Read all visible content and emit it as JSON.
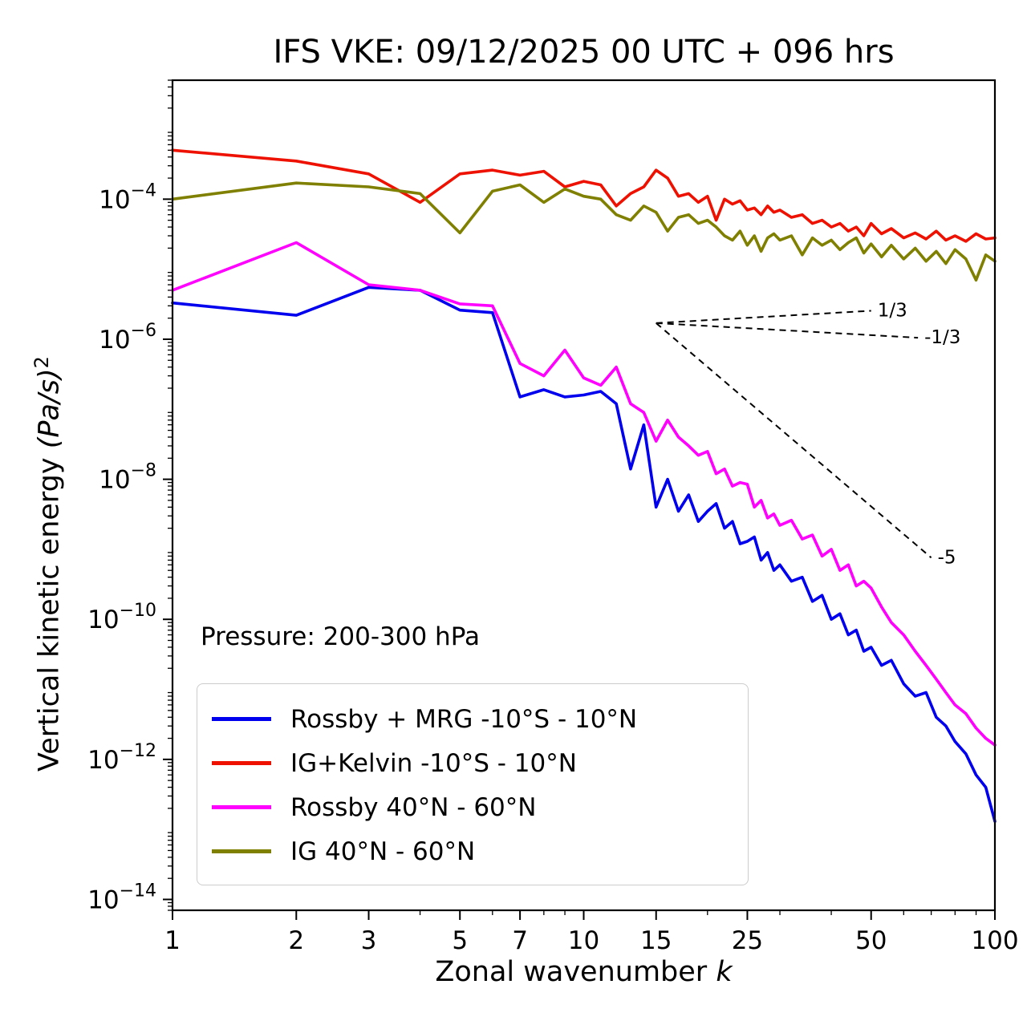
{
  "title": "IFS VKE: 09/12/2025 00 UTC + 096 hrs",
  "annotation": "Pressure: 200-300 hPa",
  "axes": {
    "xlabel": "Zonal wavenumber ",
    "xlabel_var": "k",
    "ylabel": "Vertical kinetic energy ",
    "ylabel_units": "(Pa/s)",
    "ylabel_exponent": "2",
    "x_ticks": [
      1,
      2,
      3,
      5,
      7,
      10,
      15,
      25,
      50,
      100
    ],
    "y_tick_exponents": [
      -4,
      -6,
      -8,
      -10,
      -12,
      -14
    ],
    "xlim": [
      1,
      100
    ],
    "ylim": [
      7e-15,
      0.005
    ]
  },
  "chart_data": {
    "type": "line",
    "x_scale": "log",
    "y_scale": "log",
    "x": [
      1,
      2,
      3,
      4,
      5,
      6,
      7,
      8,
      9,
      10,
      11,
      12,
      13,
      14,
      15,
      16,
      17,
      18,
      19,
      20,
      21,
      22,
      23,
      24,
      25,
      26,
      27,
      28,
      29,
      30,
      32,
      34,
      36,
      38,
      40,
      42,
      44,
      46,
      48,
      50,
      53,
      56,
      60,
      64,
      68,
      72,
      76,
      80,
      85,
      90,
      95,
      100
    ],
    "series": [
      {
        "name": "Rossby + MRG -10°S - 10°N",
        "color": "#0000ee",
        "values": [
          3.3e-06,
          2.2e-06,
          5.5e-06,
          5e-06,
          2.6e-06,
          2.4e-06,
          1.5e-07,
          1.9e-07,
          1.5e-07,
          1.6e-07,
          1.8e-07,
          1.2e-07,
          1.4e-08,
          6e-08,
          4e-09,
          1e-08,
          3.5e-09,
          6e-09,
          2.5e-09,
          3.5e-09,
          4.5e-09,
          2e-09,
          2.5e-09,
          1.2e-09,
          1.3e-09,
          1.5e-09,
          7e-10,
          9e-10,
          5e-10,
          6e-10,
          3.5e-10,
          4e-10,
          1.8e-10,
          2.2e-10,
          1e-10,
          1.2e-10,
          6e-11,
          7e-11,
          3.5e-11,
          4e-11,
          2.2e-11,
          2.6e-11,
          1.2e-11,
          8e-12,
          9e-12,
          4e-12,
          3e-12,
          1.8e-12,
          1.2e-12,
          6e-13,
          4e-13,
          1.3e-13
        ]
      },
      {
        "name": "IG+Kelvin -10°S - 10°N",
        "color": "#ee1100",
        "values": [
          0.0005,
          0.00035,
          0.00023,
          9e-05,
          0.00023,
          0.00026,
          0.00022,
          0.00025,
          0.00015,
          0.00018,
          0.00016,
          8e-05,
          0.00012,
          0.00015,
          0.00026,
          0.0002,
          0.00011,
          0.00012,
          9e-05,
          0.00011,
          5e-05,
          0.0001,
          8.5e-05,
          9.5e-05,
          7e-05,
          7.5e-05,
          6e-05,
          8e-05,
          6.5e-05,
          7e-05,
          5.5e-05,
          6e-05,
          4.5e-05,
          5e-05,
          4e-05,
          4.5e-05,
          3.5e-05,
          4e-05,
          3e-05,
          4.5e-05,
          3.2e-05,
          3.8e-05,
          2.8e-05,
          3.3e-05,
          2.7e-05,
          3.5e-05,
          2.6e-05,
          3e-05,
          2.5e-05,
          3.2e-05,
          2.7e-05,
          2.8e-05
        ]
      },
      {
        "name": "Rossby 40°N - 60°N",
        "color": "#ff00ff",
        "values": [
          5e-06,
          2.4e-05,
          6e-06,
          5e-06,
          3.2e-06,
          3e-06,
          4.5e-07,
          3e-07,
          7e-07,
          2.8e-07,
          2.2e-07,
          4e-07,
          1.2e-07,
          9e-08,
          3.5e-08,
          7e-08,
          4e-08,
          3e-08,
          2.2e-08,
          2.5e-08,
          1.2e-08,
          1.4e-08,
          8e-09,
          9e-09,
          8.5e-09,
          4e-09,
          5e-09,
          2.8e-09,
          3.2e-09,
          2.2e-09,
          2.6e-09,
          1.4e-09,
          1.6e-09,
          8e-10,
          1e-09,
          5e-10,
          6e-10,
          3e-10,
          3.5e-10,
          2.8e-10,
          1.5e-10,
          9e-11,
          6e-11,
          3.5e-11,
          2.2e-11,
          1.4e-11,
          9e-12,
          6e-12,
          4.5e-12,
          2.8e-12,
          2e-12,
          1.6e-12
        ]
      },
      {
        "name": "IG 40°N - 60°N",
        "color": "#7f7f00",
        "values": [
          0.0001,
          0.00017,
          0.00015,
          0.00012,
          3.3e-05,
          0.00013,
          0.00016,
          9e-05,
          0.00014,
          0.00011,
          0.0001,
          6e-05,
          5e-05,
          8e-05,
          6.5e-05,
          3.5e-05,
          5.5e-05,
          6e-05,
          4.5e-05,
          5e-05,
          4e-05,
          3e-05,
          2.6e-05,
          3.5e-05,
          2.2e-05,
          3e-05,
          1.8e-05,
          2.8e-05,
          3.2e-05,
          2.6e-05,
          3e-05,
          1.6e-05,
          2.8e-05,
          2.2e-05,
          2.6e-05,
          1.9e-05,
          2.4e-05,
          2.8e-05,
          1.7e-05,
          2.3e-05,
          1.5e-05,
          2.2e-05,
          1.4e-05,
          2e-05,
          1.3e-05,
          1.8e-05,
          1.2e-05,
          1.9e-05,
          1.4e-05,
          7e-06,
          1.6e-05,
          1.3e-05
        ]
      }
    ],
    "reference_lines": [
      {
        "label": "1/3",
        "slope": 0.333,
        "x": [
          15,
          50
        ],
        "y": [
          1.7e-06,
          2.55e-06
        ]
      },
      {
        "label": "-1/3",
        "slope": -0.333,
        "x": [
          15,
          65
        ],
        "y": [
          1.7e-06,
          1.05e-06
        ]
      },
      {
        "label": "-5",
        "slope": -5,
        "x": [
          15,
          70
        ],
        "y": [
          1.7e-06,
          7.6e-10
        ]
      }
    ]
  }
}
